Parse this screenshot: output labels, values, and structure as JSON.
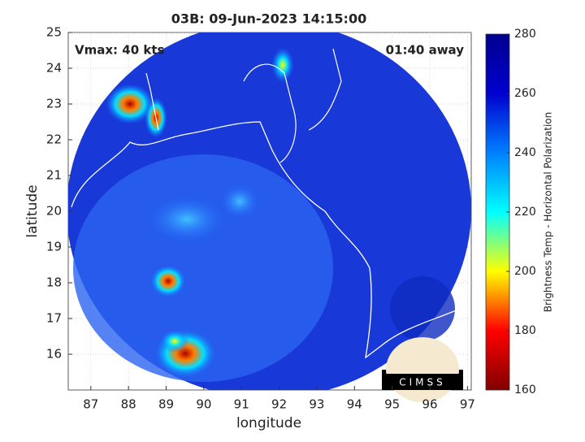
{
  "chart_data": {
    "type": "heatmap",
    "title": "03B: 09-Jun-2023 14:15:00",
    "annotations": [
      "Vmax: 40 kts",
      "01:40 away"
    ],
    "x_label": "longitude",
    "y_label": "latitude",
    "xlim": [
      86.4,
      97.1
    ],
    "xticks": [
      87,
      88,
      89,
      90,
      91,
      92,
      93,
      94,
      95,
      96,
      97
    ],
    "ylim": [
      15,
      25
    ],
    "yticks": [
      16,
      17,
      18,
      19,
      20,
      21,
      22,
      23,
      24,
      25
    ],
    "grid": true,
    "colorbar": {
      "label": "Brightness Temp - Horizontal Polarization",
      "lim": [
        160,
        280
      ],
      "ticks": [
        160,
        180,
        200,
        220,
        240,
        260,
        280
      ],
      "colors": [
        "#800000",
        "#ff0000",
        "#ffff00",
        "#00ffff",
        "#0080ff",
        "#0000cf",
        "#00008f"
      ]
    },
    "logo_text": "CIMSS"
  }
}
